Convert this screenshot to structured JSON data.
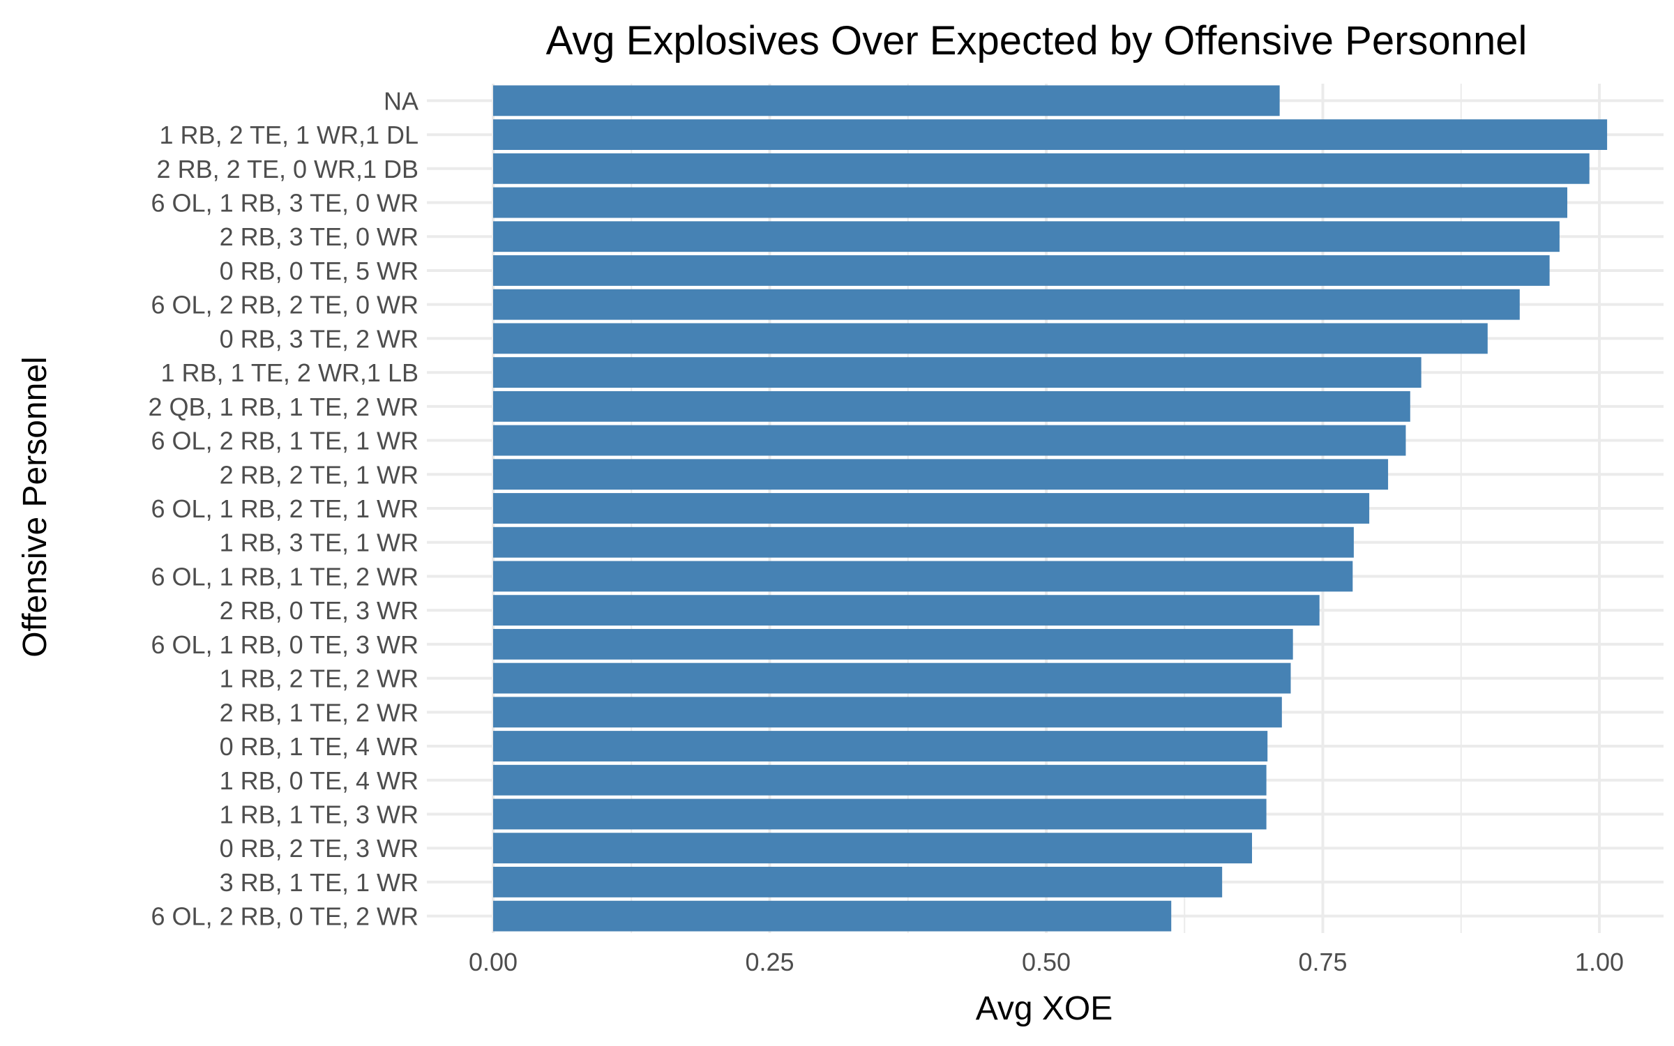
{
  "chart_data": {
    "type": "bar",
    "orientation": "horizontal",
    "title": "Avg Explosives Over Expected by Offensive Personnel",
    "xlabel": "Avg XOE",
    "ylabel": "Offensive Personnel",
    "categories": [
      "NA",
      "1 RB, 2 TE, 1 WR,1 DL",
      "2 RB, 2 TE, 0 WR,1 DB",
      "6 OL, 1 RB, 3 TE, 0 WR",
      "2 RB, 3 TE, 0 WR",
      "0 RB, 0 TE, 5 WR",
      "6 OL, 2 RB, 2 TE, 0 WR",
      "0 RB, 3 TE, 2 WR",
      "1 RB, 1 TE, 2 WR,1 LB",
      "2 QB, 1 RB, 1 TE, 2 WR",
      "6 OL, 2 RB, 1 TE, 1 WR",
      "2 RB, 2 TE, 1 WR",
      "6 OL, 1 RB, 2 TE, 1 WR",
      "1 RB, 3 TE, 1 WR",
      "6 OL, 1 RB, 1 TE, 2 WR",
      "2 RB, 0 TE, 3 WR",
      "6 OL, 1 RB, 0 TE, 3 WR",
      "1 RB, 2 TE, 2 WR",
      "2 RB, 1 TE, 2 WR",
      "0 RB, 1 TE, 4 WR",
      "1 RB, 0 TE, 4 WR",
      "1 RB, 1 TE, 3 WR",
      "0 RB, 2 TE, 3 WR",
      "3 RB, 1 TE, 1 WR",
      "6 OL, 2 RB, 0 TE, 2 WR"
    ],
    "values": [
      0.711,
      1.007,
      0.991,
      0.971,
      0.964,
      0.955,
      0.928,
      0.899,
      0.839,
      0.829,
      0.825,
      0.809,
      0.792,
      0.778,
      0.777,
      0.747,
      0.723,
      0.721,
      0.713,
      0.7,
      0.699,
      0.699,
      0.686,
      0.659,
      0.613
    ],
    "xlim": [
      0,
      1.02
    ],
    "xticks": [
      "0.00",
      "0.25",
      "0.50",
      "0.75",
      "1.00"
    ],
    "xtick_values": [
      0,
      0.25,
      0.5,
      0.75,
      1.0
    ],
    "bar_color": "#4682b4",
    "grid": true,
    "legend": "none"
  }
}
